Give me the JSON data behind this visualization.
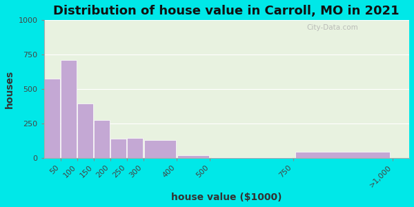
{
  "title": "Distribution of house value in Carroll, MO in 2021",
  "xlabel": "house value ($1000)",
  "ylabel": "houses",
  "bin_edges": [
    0,
    50,
    100,
    150,
    200,
    250,
    300,
    400,
    500,
    750,
    1050
  ],
  "tick_positions": [
    50,
    100,
    150,
    200,
    250,
    300,
    400,
    500,
    750,
    1050
  ],
  "tick_labels": [
    "50",
    "100",
    "150",
    "200",
    "250",
    "300",
    "400",
    "500",
    "750",
    ">1,000"
  ],
  "values": [
    575,
    710,
    395,
    275,
    140,
    145,
    130,
    20,
    5,
    45
  ],
  "bar_color": "#c4a8d4",
  "ylim": [
    0,
    1000
  ],
  "yticks": [
    0,
    250,
    500,
    750,
    1000
  ],
  "xlim": [
    0,
    1100
  ],
  "background_outer": "#00e8e8",
  "background_plot": "#e8f2e0",
  "title_fontsize": 13,
  "axis_label_fontsize": 10,
  "tick_fontsize": 8,
  "watermark": "City-Data.com"
}
